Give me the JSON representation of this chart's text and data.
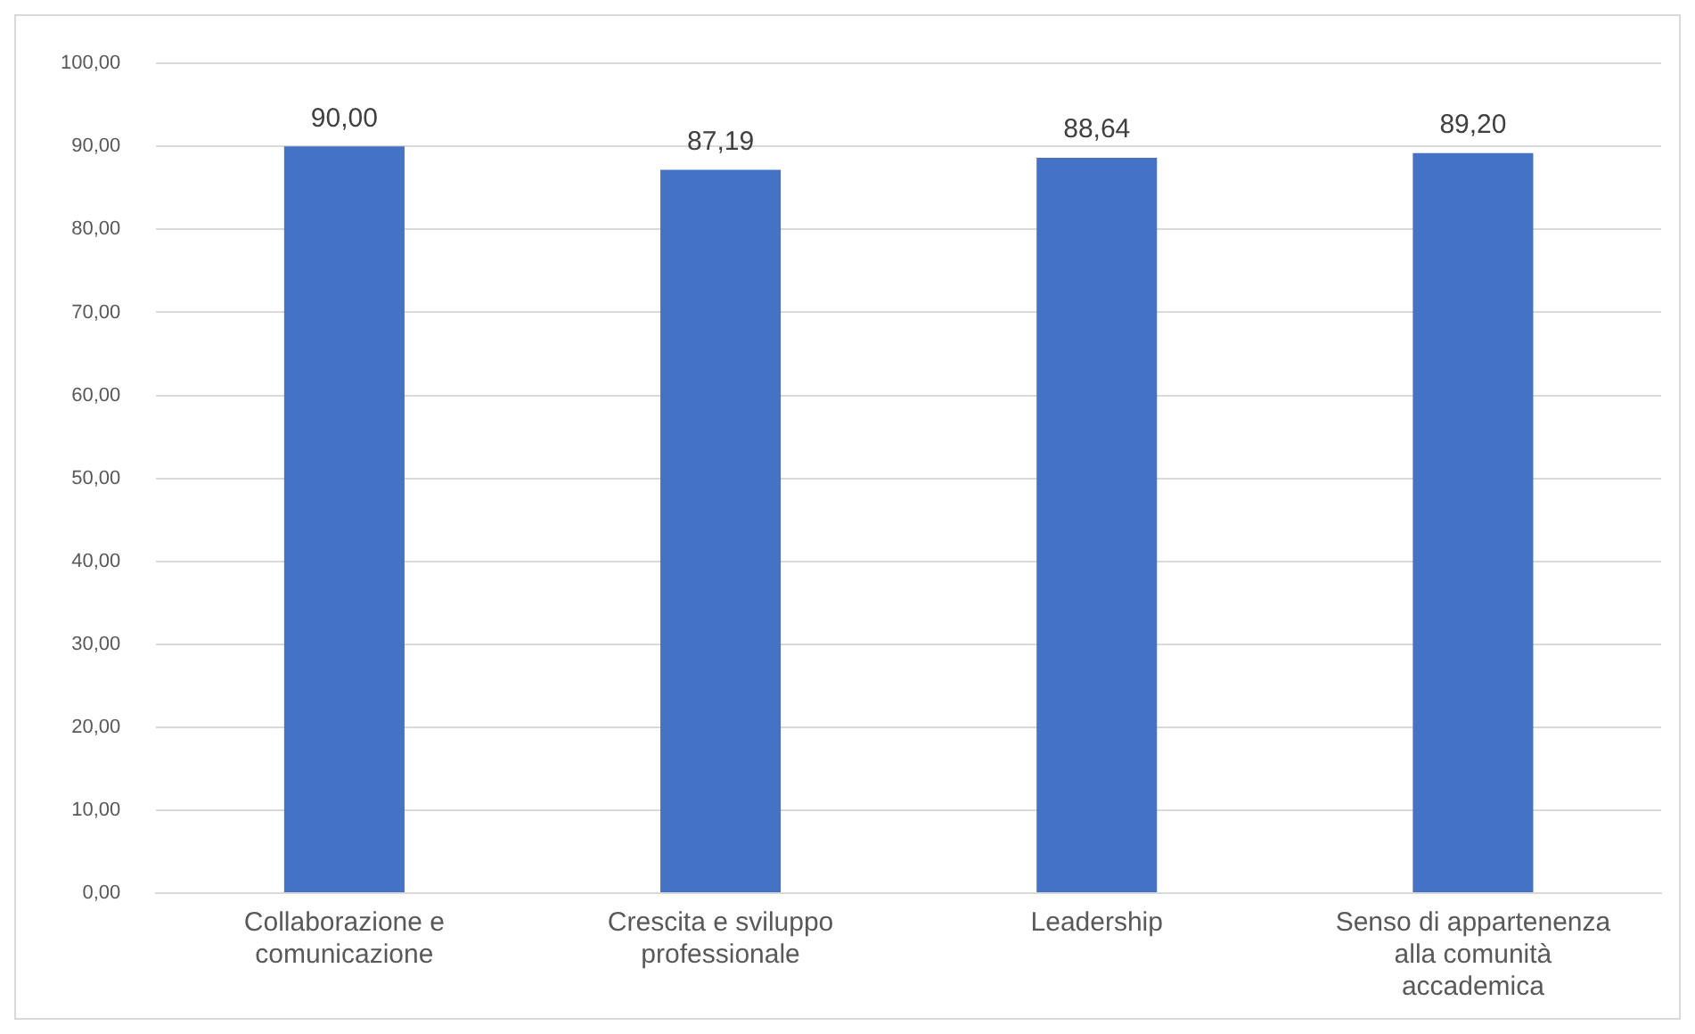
{
  "chart_data": {
    "type": "bar",
    "categories": [
      "Collaborazione e comunicazione",
      "Crescita e sviluppo professionale",
      "Leadership",
      "Senso di appartenenza alla comunità accademica"
    ],
    "values": [
      90.0,
      87.19,
      88.64,
      89.2
    ],
    "value_labels": [
      "90,00",
      "87,19",
      "88,64",
      "89,20"
    ],
    "color": "#4472c4",
    "ylim": [
      0,
      100
    ],
    "yticks": [
      {
        "value": 0,
        "label": "0,00"
      },
      {
        "value": 10,
        "label": "10,00"
      },
      {
        "value": 20,
        "label": "20,00"
      },
      {
        "value": 30,
        "label": "30,00"
      },
      {
        "value": 40,
        "label": "40,00"
      },
      {
        "value": 50,
        "label": "50,00"
      },
      {
        "value": 60,
        "label": "60,00"
      },
      {
        "value": 70,
        "label": "70,00"
      },
      {
        "value": 80,
        "label": "80,00"
      },
      {
        "value": 90,
        "label": "90,00"
      },
      {
        "value": 100,
        "label": "100,00"
      }
    ],
    "grid": "y",
    "legend": false
  }
}
